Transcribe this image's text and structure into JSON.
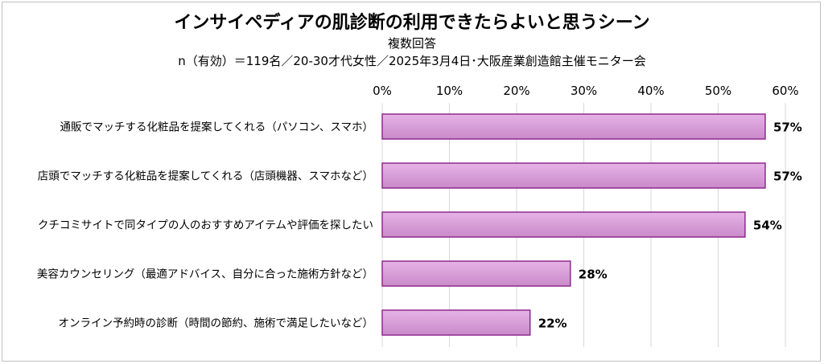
{
  "chart_data": {
    "type": "bar",
    "orientation": "horizontal",
    "title": "インサイペディアの肌診断の利用できたらよいと思うシーン",
    "subtitle": "複数回答",
    "note": "n（有効）＝119名／20-30才代女性／2025年3月4日･大阪産業創造館主催モニター会",
    "categories": [
      "通販でマッチする化粧品を提案してくれる（パソコン、スマホ）",
      "店頭でマッチする化粧品を提案してくれる（店頭機器、スマホなど）",
      "クチコミサイトで同タイプの人のおすすめアイテムや評価を探したい",
      "美容カウンセリング（最適アドバイス、自分に合った施術方針など）",
      "オンライン予約時の診断（時間の節約、施術で満足したいなど）"
    ],
    "values": [
      57,
      57,
      54,
      28,
      22
    ],
    "value_labels": [
      "57%",
      "57%",
      "54%",
      "28%",
      "22%"
    ],
    "x_ticks": [
      "0%",
      "10%",
      "20%",
      "30%",
      "40%",
      "50%",
      "60%"
    ],
    "xlim": [
      0,
      60
    ],
    "grid": true,
    "bar_fill_top": "#e6b3e6",
    "bar_fill_bottom": "#c98ac9",
    "bar_stroke": "#8e2a8e"
  }
}
